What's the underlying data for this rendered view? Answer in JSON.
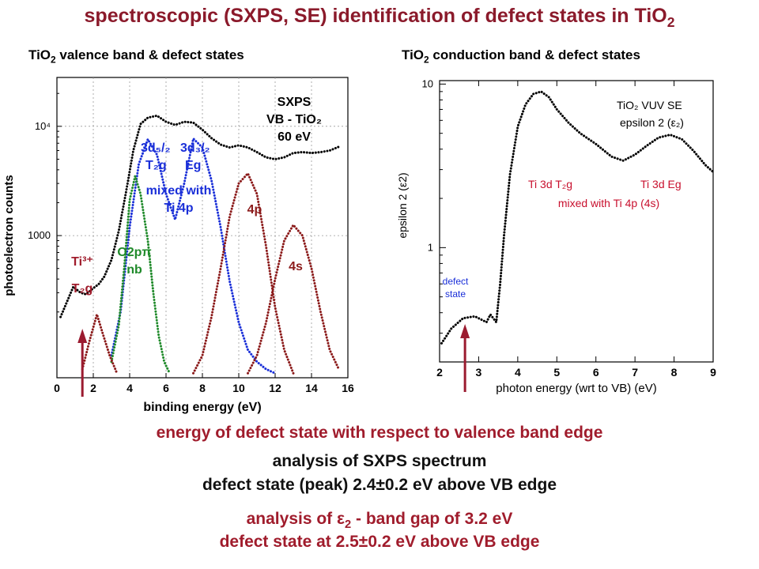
{
  "title": {
    "main": "spectroscopic (SXPS, SE) identification of defect states in TiO",
    "sub2": "2"
  },
  "left_heading": {
    "pre": "TiO",
    "sub2": "2",
    "post": " valence band & defect states"
  },
  "right_heading": {
    "pre": "TiO",
    "sub2": "2",
    "post": " conduction band & defect states"
  },
  "bottom": {
    "line1": "energy of defect state with respect to valence band edge",
    "line2": "analysis of SXPS spectrum",
    "line3": "defect state (peak) 2.4±0.2 eV above VB edge",
    "line4_pre": "analysis of ε",
    "line4_sub": "2",
    "line4_post": " - band gap of 3.2 eV",
    "line5": "defect state at 2.5±0.2 eV above VB edge"
  },
  "colors": {
    "dark_red": "#8b1a2b",
    "red_text": "#c8102e",
    "blue": "#1a2fd8",
    "green": "#1f8a2a",
    "brown": "#8b1a1a",
    "arrow": "#9b1b30"
  },
  "chart_data": [
    {
      "type": "line",
      "scale": "log-y",
      "xlabel": "binding energy (eV)",
      "ylabel": "photoelectron counts",
      "xlim": [
        0,
        16
      ],
      "x_ticks": [
        "0",
        "2",
        "4",
        "6",
        "8",
        "10",
        "12",
        "14",
        "16"
      ],
      "y_ticks": [
        "1000",
        "10⁴"
      ],
      "grid": true,
      "annotations": {
        "box": [
          "SXPS",
          "VB - TiO₂",
          "60 eV"
        ],
        "ti3_a": "Ti³⁺",
        "ti3_b": "T₂g",
        "o2p_a": "O2pπ",
        "o2p_b": "nb",
        "d52": "3d₅/₂",
        "d52_b": "T₂g",
        "d32": "3d₃/₂",
        "d32_b": "Eg",
        "mixed": "mixed with",
        "ti4p": "Ti 4p",
        "p4": "4p",
        "s4": "4s"
      },
      "series": [
        {
          "color": "#000000",
          "x": [
            0.2,
            0.9,
            1.3,
            1.6,
            2.0,
            2.3,
            2.6,
            3.0,
            3.4,
            3.8,
            4.2,
            4.6,
            5.0,
            5.5,
            6.0,
            6.5,
            7.0,
            7.5,
            8.0,
            8.5,
            9.0,
            9.5,
            10.0,
            10.5,
            11.0,
            11.5,
            12.0,
            12.5,
            13.0,
            13.5,
            14.0,
            14.5,
            15.0,
            15.6
          ],
          "y": [
            180,
            340,
            300,
            290,
            330,
            360,
            420,
            600,
            1100,
            2500,
            6000,
            10500,
            12000,
            12500,
            11000,
            10300,
            11000,
            10800,
            9300,
            7800,
            6800,
            6400,
            6700,
            6400,
            5800,
            5200,
            5000,
            5200,
            5700,
            5800,
            5700,
            5800,
            6000,
            6600
          ]
        },
        {
          "color": "#1a2fd8",
          "x": [
            3.0,
            3.5,
            4.0,
            4.5,
            5.0,
            5.5,
            6.0,
            6.5,
            7.0,
            7.5,
            8.0,
            8.5,
            9.0,
            9.5,
            10.0,
            10.5,
            11.0,
            11.5,
            12.0
          ],
          "y": [
            80,
            200,
            1200,
            4500,
            7600,
            5500,
            2400,
            1400,
            3000,
            7700,
            6400,
            3200,
            1200,
            380,
            160,
            90,
            70,
            60,
            55
          ]
        },
        {
          "color": "#1f8a2a",
          "x": [
            3.0,
            3.4,
            3.7,
            4.0,
            4.3,
            4.6,
            5.0,
            5.3,
            5.6,
            5.9,
            6.2
          ],
          "y": [
            70,
            150,
            500,
            2100,
            3500,
            2400,
            900,
            300,
            120,
            70,
            55
          ]
        },
        {
          "color": "#8b1a1a",
          "x": [
            1.4,
            1.8,
            2.2,
            2.5,
            2.9,
            3.3
          ],
          "y": [
            60,
            110,
            190,
            130,
            80,
            55
          ]
        },
        {
          "color": "#8b1a1a",
          "x": [
            7.5,
            8.0,
            8.5,
            9.0,
            9.5,
            10.0,
            10.5,
            11.0,
            11.5,
            12.0,
            12.5,
            13.0
          ],
          "y": [
            55,
            80,
            180,
            500,
            1500,
            3000,
            3700,
            2400,
            800,
            220,
            90,
            55
          ]
        },
        {
          "color": "#8b1a1a",
          "x": [
            10.5,
            11.0,
            11.5,
            12.0,
            12.5,
            13.0,
            13.5,
            14.0,
            14.5,
            15.0,
            15.5
          ],
          "y": [
            55,
            80,
            160,
            400,
            900,
            1250,
            1000,
            500,
            200,
            90,
            60
          ]
        }
      ]
    },
    {
      "type": "line",
      "scale": "log-y",
      "xlabel": "photon energy (wrt to VB) (eV)",
      "ylabel": "epsilon 2 (ε2)",
      "xlim": [
        2,
        9
      ],
      "x_ticks": [
        "2",
        "3",
        "4",
        "5",
        "6",
        "7",
        "8",
        "9"
      ],
      "y_ticks": [
        "1",
        "10"
      ],
      "annotations": {
        "box_a": "TiO₂ VUV SE",
        "box_b": "epsilon 2 (ε₂)",
        "t2g": "Ti 3d T₂g",
        "eg": "Ti 3d Eg",
        "mixed": "mixed with Ti 4p (4s)",
        "defect_a": "defect",
        "defect_b": "state"
      },
      "series": [
        {
          "color": "#000000",
          "x": [
            2.05,
            2.3,
            2.6,
            2.9,
            3.1,
            3.2,
            3.3,
            3.45,
            3.55,
            3.65,
            3.8,
            4.0,
            4.2,
            4.4,
            4.6,
            4.8,
            5.0,
            5.3,
            5.6,
            6.0,
            6.4,
            6.7,
            7.0,
            7.3,
            7.6,
            7.9,
            8.2,
            8.5,
            8.8,
            9.0
          ],
          "y": [
            0.26,
            0.32,
            0.37,
            0.38,
            0.36,
            0.35,
            0.39,
            0.35,
            0.6,
            1.2,
            2.8,
            5.5,
            7.5,
            8.7,
            9.0,
            8.3,
            7.0,
            5.8,
            5.0,
            4.3,
            3.6,
            3.4,
            3.7,
            4.2,
            4.7,
            4.9,
            4.6,
            3.9,
            3.2,
            2.9
          ]
        }
      ]
    }
  ]
}
